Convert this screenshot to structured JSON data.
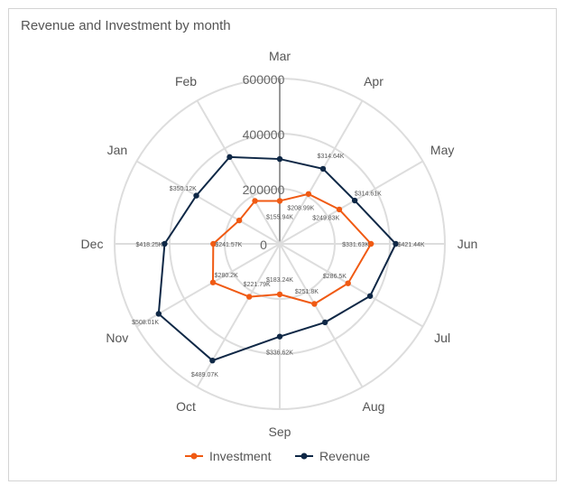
{
  "chart_data": {
    "type": "radar",
    "title": "Revenue and Investment by month",
    "categories": [
      "Mar",
      "Apr",
      "May",
      "Jun",
      "Jul",
      "Aug",
      "Sep",
      "Oct",
      "Nov",
      "Dec",
      "Jan",
      "Feb"
    ],
    "radial_ticks": [
      "0",
      "200000",
      "400000",
      "600000"
    ],
    "rlim": [
      0,
      600000
    ],
    "grid": true,
    "legend_position": "bottom",
    "series": [
      {
        "name": "Investment",
        "color": "#f05a13",
        "values": [
          155940,
          208990,
          249830,
          331630,
          286500,
          251800,
          183240,
          221790,
          280200,
          241570,
          170000,
          180000
        ],
        "labels": [
          "$155.94K",
          "$208.99K",
          "$249.83K",
          "$331.63K",
          "$286.5K",
          "$251.8K",
          "$183.24K",
          "$221.79K",
          "$280.2K",
          "$241.57K",
          null,
          null
        ]
      },
      {
        "name": "Revenue",
        "color": "#0f2846",
        "values": [
          308000,
          314640,
          314610,
          421440,
          379000,
          329000,
          336620,
          489070,
          508010,
          418250,
          350120,
          364000
        ],
        "labels": [
          null,
          "$314.64K",
          "$314.61K",
          "$421.44K",
          null,
          null,
          "$336.62K",
          "$489.07K",
          "$508.01K",
          "$418.25K",
          "$350.12K",
          null
        ]
      }
    ]
  }
}
